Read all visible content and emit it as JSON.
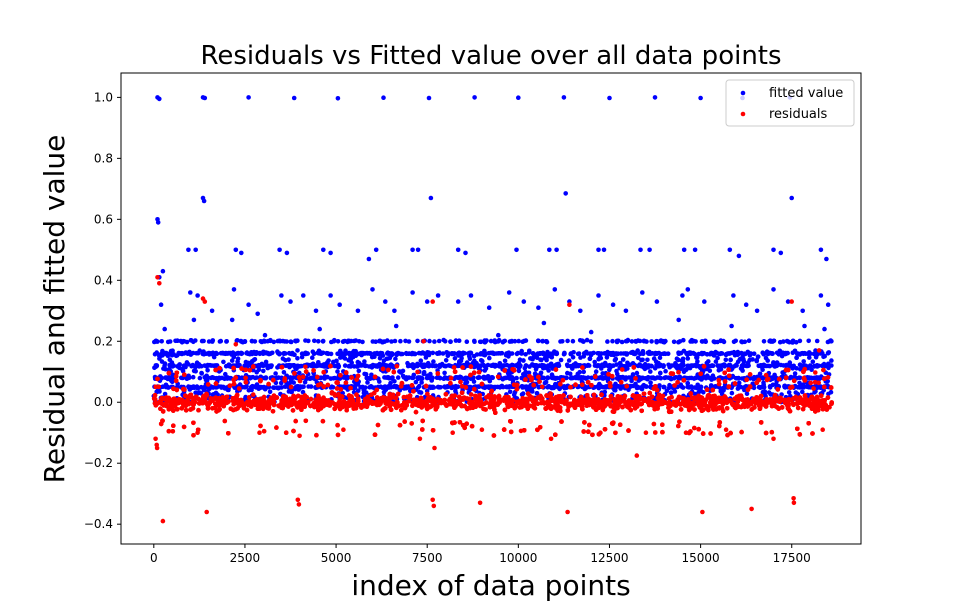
{
  "chart_data": {
    "type": "scatter",
    "title": "Residuals vs Fitted value over all data points",
    "xlabel": "index of data points",
    "ylabel": "Residual and fitted value",
    "xlim": [
      -900,
      19400
    ],
    "ylim": [
      -0.465,
      1.08
    ],
    "x_ticks": [
      0,
      2500,
      5000,
      7500,
      10000,
      12500,
      15000,
      17500
    ],
    "x_tick_labels": [
      "0",
      "2500",
      "5000",
      "7500",
      "10000",
      "12500",
      "15000",
      "17500"
    ],
    "y_ticks": [
      -0.4,
      -0.2,
      0.0,
      0.2,
      0.4,
      0.6,
      0.8,
      1.0
    ],
    "y_tick_labels": [
      "−0.4",
      "−0.2",
      "0.0",
      "0.2",
      "0.4",
      "0.6",
      "0.8",
      "1.0"
    ],
    "grid": false,
    "legend_position": "top-right",
    "n_points": 18600,
    "series": [
      {
        "name": "fitted value",
        "color": "#0000ff",
        "bulk_range": [
          0.0,
          0.17
        ],
        "levels": [
          0.05,
          0.08,
          0.12,
          0.16,
          0.2,
          0.3,
          0.33,
          0.35,
          0.37,
          0.5,
          0.6,
          0.67,
          1.0
        ],
        "points": [
          [
            100,
            1.0
          ],
          [
            150,
            0.995
          ],
          [
            1350,
            1.0
          ],
          [
            1400,
            0.998
          ],
          [
            2600,
            1.0
          ],
          [
            3850,
            0.998
          ],
          [
            5050,
            0.997
          ],
          [
            6300,
            0.999
          ],
          [
            7550,
            0.998
          ],
          [
            8800,
            1.0
          ],
          [
            10000,
            0.999
          ],
          [
            11250,
            1.0
          ],
          [
            12500,
            0.998
          ],
          [
            13750,
            1.0
          ],
          [
            15000,
            0.998
          ],
          [
            16150,
            0.998
          ],
          [
            17450,
            1.0
          ],
          [
            100,
            0.6
          ],
          [
            120,
            0.59
          ],
          [
            1350,
            0.67
          ],
          [
            1380,
            0.66
          ],
          [
            7600,
            0.67
          ],
          [
            11300,
            0.685
          ],
          [
            17500,
            0.67
          ],
          [
            250,
            0.43
          ],
          [
            150,
            0.41
          ],
          [
            950,
            0.5
          ],
          [
            1150,
            0.5
          ],
          [
            2250,
            0.5
          ],
          [
            2400,
            0.49
          ],
          [
            3450,
            0.5
          ],
          [
            3650,
            0.49
          ],
          [
            4650,
            0.5
          ],
          [
            4850,
            0.49
          ],
          [
            5900,
            0.47
          ],
          [
            6100,
            0.5
          ],
          [
            7100,
            0.5
          ],
          [
            7250,
            0.5
          ],
          [
            8350,
            0.5
          ],
          [
            8550,
            0.49
          ],
          [
            9950,
            0.5
          ],
          [
            10850,
            0.5
          ],
          [
            11050,
            0.5
          ],
          [
            12200,
            0.5
          ],
          [
            12350,
            0.5
          ],
          [
            13350,
            0.5
          ],
          [
            13600,
            0.5
          ],
          [
            14550,
            0.5
          ],
          [
            14850,
            0.5
          ],
          [
            15800,
            0.5
          ],
          [
            16050,
            0.48
          ],
          [
            17000,
            0.5
          ],
          [
            17200,
            0.49
          ],
          [
            18300,
            0.5
          ],
          [
            18450,
            0.47
          ],
          [
            200,
            0.32
          ],
          [
            1000,
            0.36
          ],
          [
            1200,
            0.35
          ],
          [
            1600,
            0.3
          ],
          [
            2200,
            0.37
          ],
          [
            2600,
            0.32
          ],
          [
            2850,
            0.29
          ],
          [
            3500,
            0.35
          ],
          [
            3750,
            0.33
          ],
          [
            4100,
            0.35
          ],
          [
            4450,
            0.3
          ],
          [
            4850,
            0.35
          ],
          [
            5100,
            0.32
          ],
          [
            5600,
            0.3
          ],
          [
            6000,
            0.37
          ],
          [
            6350,
            0.33
          ],
          [
            6600,
            0.3
          ],
          [
            7100,
            0.36
          ],
          [
            7500,
            0.33
          ],
          [
            7800,
            0.35
          ],
          [
            8350,
            0.33
          ],
          [
            8700,
            0.35
          ],
          [
            9200,
            0.31
          ],
          [
            9750,
            0.36
          ],
          [
            10150,
            0.33
          ],
          [
            10550,
            0.31
          ],
          [
            11000,
            0.37
          ],
          [
            11400,
            0.33
          ],
          [
            11700,
            0.3
          ],
          [
            12200,
            0.35
          ],
          [
            12600,
            0.32
          ],
          [
            12950,
            0.3
          ],
          [
            13400,
            0.36
          ],
          [
            13800,
            0.33
          ],
          [
            14500,
            0.35
          ],
          [
            14650,
            0.37
          ],
          [
            15100,
            0.33
          ],
          [
            15900,
            0.35
          ],
          [
            16250,
            0.32
          ],
          [
            16550,
            0.3
          ],
          [
            17000,
            0.37
          ],
          [
            17400,
            0.33
          ],
          [
            17800,
            0.3
          ],
          [
            18300,
            0.35
          ],
          [
            18500,
            0.32
          ],
          [
            300,
            0.24
          ],
          [
            1100,
            0.27
          ],
          [
            2150,
            0.27
          ],
          [
            3050,
            0.22
          ],
          [
            4550,
            0.24
          ],
          [
            6650,
            0.25
          ],
          [
            9450,
            0.22
          ],
          [
            10700,
            0.26
          ],
          [
            12000,
            0.23
          ],
          [
            14400,
            0.27
          ],
          [
            15850,
            0.25
          ],
          [
            17850,
            0.25
          ],
          [
            18400,
            0.24
          ]
        ]
      },
      {
        "name": "residuals",
        "color": "#ff0000",
        "bulk_range": [
          -0.06,
          0.06
        ],
        "points": [
          [
            100,
            0.41
          ],
          [
            150,
            0.39
          ],
          [
            1350,
            0.34
          ],
          [
            1400,
            0.33
          ],
          [
            7650,
            0.33
          ],
          [
            11400,
            0.32
          ],
          [
            17500,
            0.33
          ],
          [
            7400,
            0.2
          ],
          [
            2250,
            0.19
          ],
          [
            18250,
            0.17
          ],
          [
            250,
            -0.39
          ],
          [
            1450,
            -0.36
          ],
          [
            3950,
            -0.32
          ],
          [
            3980,
            -0.335
          ],
          [
            7650,
            -0.32
          ],
          [
            7680,
            -0.34
          ],
          [
            8950,
            -0.33
          ],
          [
            11350,
            -0.36
          ],
          [
            15050,
            -0.36
          ],
          [
            16400,
            -0.35
          ],
          [
            17550,
            -0.315
          ],
          [
            17560,
            -0.33
          ],
          [
            13250,
            -0.175
          ],
          [
            50,
            -0.12
          ],
          [
            80,
            -0.14
          ],
          [
            90,
            -0.15
          ],
          [
            1200,
            -0.1
          ],
          [
            2900,
            -0.1
          ],
          [
            4000,
            -0.11
          ],
          [
            5200,
            -0.09
          ],
          [
            7300,
            -0.12
          ],
          [
            7700,
            -0.15
          ],
          [
            8200,
            -0.1
          ],
          [
            9000,
            -0.09
          ],
          [
            10900,
            -0.12
          ],
          [
            12250,
            -0.1
          ],
          [
            13500,
            -0.1
          ],
          [
            14600,
            -0.1
          ],
          [
            15700,
            -0.09
          ],
          [
            17000,
            -0.12
          ],
          [
            18350,
            -0.09
          ]
        ]
      }
    ]
  }
}
